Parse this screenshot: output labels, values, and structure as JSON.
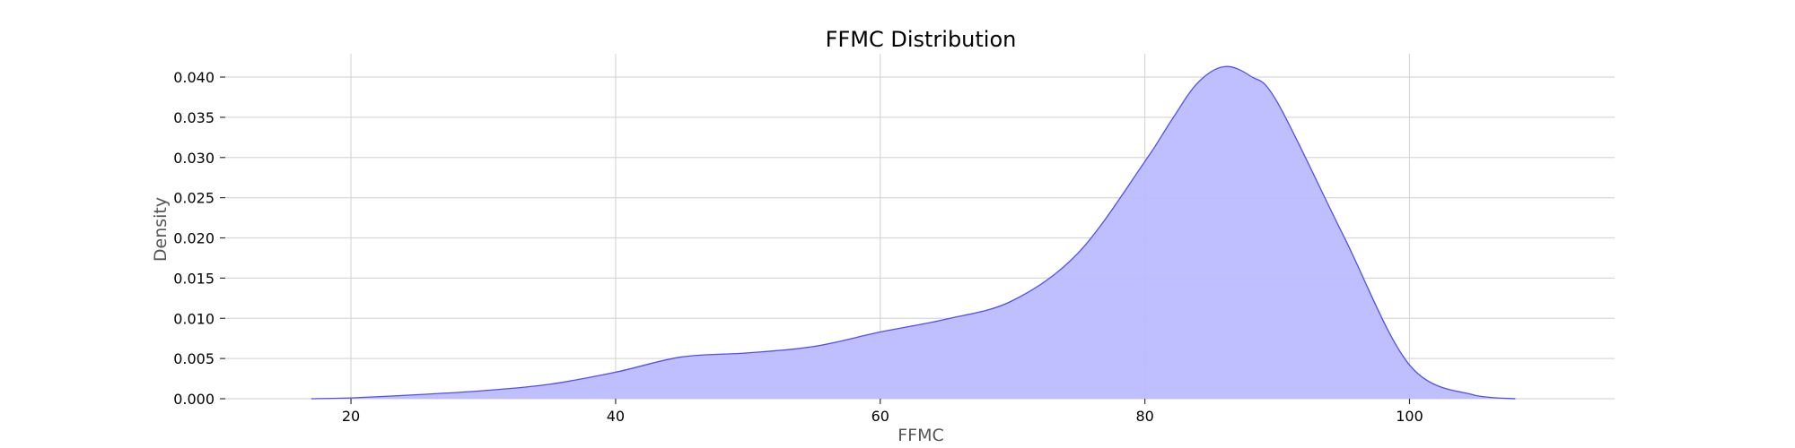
{
  "chart_data": {
    "type": "area",
    "title": "FFMC Distribution",
    "xlabel": "FFMC",
    "ylabel": "Density",
    "xlim": [
      10.5,
      115.5
    ],
    "ylim": [
      0.0,
      0.0429
    ],
    "x_ticks": [
      20,
      40,
      60,
      80,
      100
    ],
    "x_tick_labels": [
      "20",
      "40",
      "60",
      "80",
      "100"
    ],
    "y_ticks": [
      0.0,
      0.005,
      0.01,
      0.015,
      0.02,
      0.025,
      0.03,
      0.035,
      0.04
    ],
    "y_tick_labels": [
      "0.000",
      "0.005",
      "0.010",
      "0.015",
      "0.020",
      "0.025",
      "0.030",
      "0.035",
      "0.040"
    ],
    "grid": true,
    "fill_color": "#bcbcff",
    "line_color": "#5050f0",
    "series": [
      {
        "x": [
          17,
          20,
          25,
          30,
          35,
          40,
          45,
          50,
          55,
          60,
          65,
          70,
          75,
          80,
          82,
          84,
          86,
          88,
          90,
          95,
          100,
          105,
          108
        ],
        "y": [
          0.0,
          0.0001,
          0.0005,
          0.001,
          0.0018,
          0.0033,
          0.0052,
          0.0057,
          0.0065,
          0.0083,
          0.0099,
          0.0122,
          0.0182,
          0.0295,
          0.0346,
          0.0393,
          0.0413,
          0.0401,
          0.0369,
          0.0203,
          0.0042,
          0.0004,
          0.0
        ]
      }
    ]
  }
}
